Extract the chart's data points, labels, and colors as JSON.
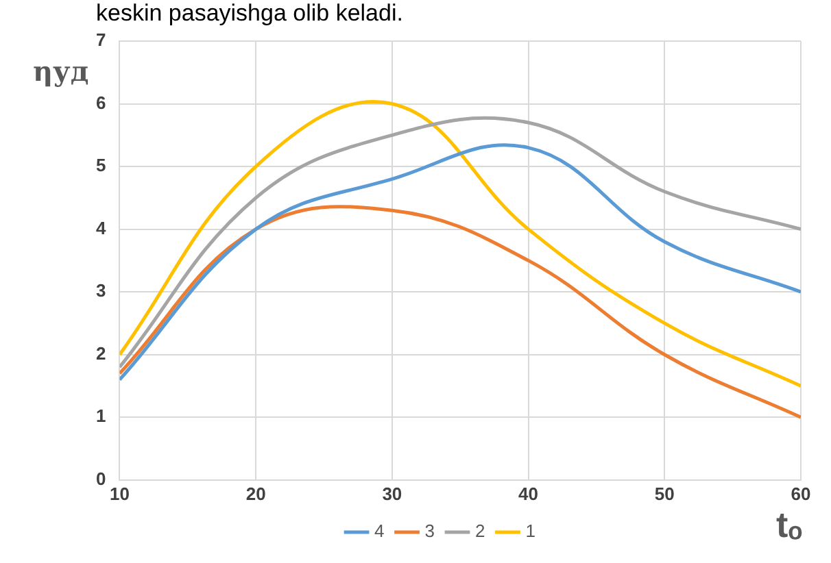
{
  "chart_data": {
    "type": "line",
    "xlabel": "tₒ",
    "ylabel": "ηуд",
    "annotations": [
      "keskin pasayishga olib keladi."
    ],
    "x": [
      10,
      20,
      30,
      40,
      50,
      60
    ],
    "series": [
      {
        "name": "4",
        "color": "#5b9bd5",
        "values": [
          1.6,
          4.0,
          4.8,
          5.3,
          3.8,
          3.0
        ]
      },
      {
        "name": "3",
        "color": "#ed7d31",
        "values": [
          1.7,
          4.0,
          4.3,
          3.5,
          2.0,
          1.0
        ]
      },
      {
        "name": "2",
        "color": "#a5a5a5",
        "values": [
          1.8,
          4.5,
          5.5,
          5.7,
          4.6,
          4.0
        ]
      },
      {
        "name": "1",
        "color": "#ffc000",
        "values": [
          2.0,
          5.0,
          6.0,
          4.0,
          2.5,
          1.5
        ]
      }
    ],
    "xlim": [
      10,
      60
    ],
    "xticks": [
      10,
      20,
      30,
      40,
      50,
      60
    ],
    "ylim": [
      0,
      7
    ],
    "yticks": [
      0,
      1,
      2,
      3,
      4,
      5,
      6,
      7
    ],
    "grid": true,
    "legend": "bottom",
    "marker": "none",
    "line_style": "solid"
  }
}
